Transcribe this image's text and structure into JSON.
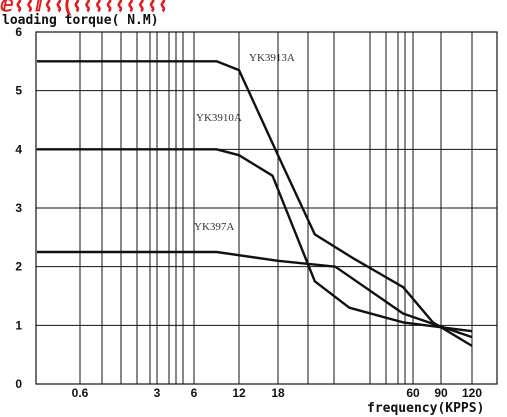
{
  "header_fragment": "ⅇ⌇⌇ⅈ⌇⌇(⌇⌇⌇⌇⌇⌇⌇⌇⌇",
  "colors": {
    "title_fragment": "#e01e1e",
    "grid": "#111111",
    "line": "#111111",
    "label": "#333333"
  },
  "chart_data": {
    "type": "line",
    "ylabel": "loading torque( N.M)",
    "xlabel": "frequency(KPPS)",
    "ylim": [
      0,
      6
    ],
    "y_ticks": [
      "0",
      "1",
      "2",
      "3",
      "4",
      "5",
      "6"
    ],
    "x_scale": "log",
    "x_tick_labels": [
      "0.6",
      "3",
      "6",
      "12",
      "18",
      "60",
      "90",
      "120"
    ],
    "x_tick_values": [
      0.6,
      3,
      6,
      12,
      18,
      60,
      90,
      120
    ],
    "grid": true,
    "series": [
      {
        "name": "YK3913A",
        "points": [
          [
            0.15,
            5.5
          ],
          [
            8.5,
            5.5
          ],
          [
            12,
            5.35
          ],
          [
            18,
            3.9
          ],
          [
            25,
            2.55
          ],
          [
            35,
            2.15
          ],
          [
            55,
            1.65
          ],
          [
            80,
            1.05
          ],
          [
            120,
            0.65
          ]
        ]
      },
      {
        "name": "YK3910A",
        "points": [
          [
            0.15,
            4.0
          ],
          [
            8.5,
            4.0
          ],
          [
            12,
            3.9
          ],
          [
            17,
            3.55
          ],
          [
            25,
            1.75
          ],
          [
            34,
            1.3
          ],
          [
            55,
            1.05
          ],
          [
            120,
            0.9
          ]
        ]
      },
      {
        "name": "YK397A",
        "points": [
          [
            0.15,
            2.25
          ],
          [
            8.5,
            2.25
          ],
          [
            18,
            2.1
          ],
          [
            30,
            2.0
          ],
          [
            55,
            1.2
          ],
          [
            120,
            0.8
          ]
        ]
      }
    ]
  }
}
